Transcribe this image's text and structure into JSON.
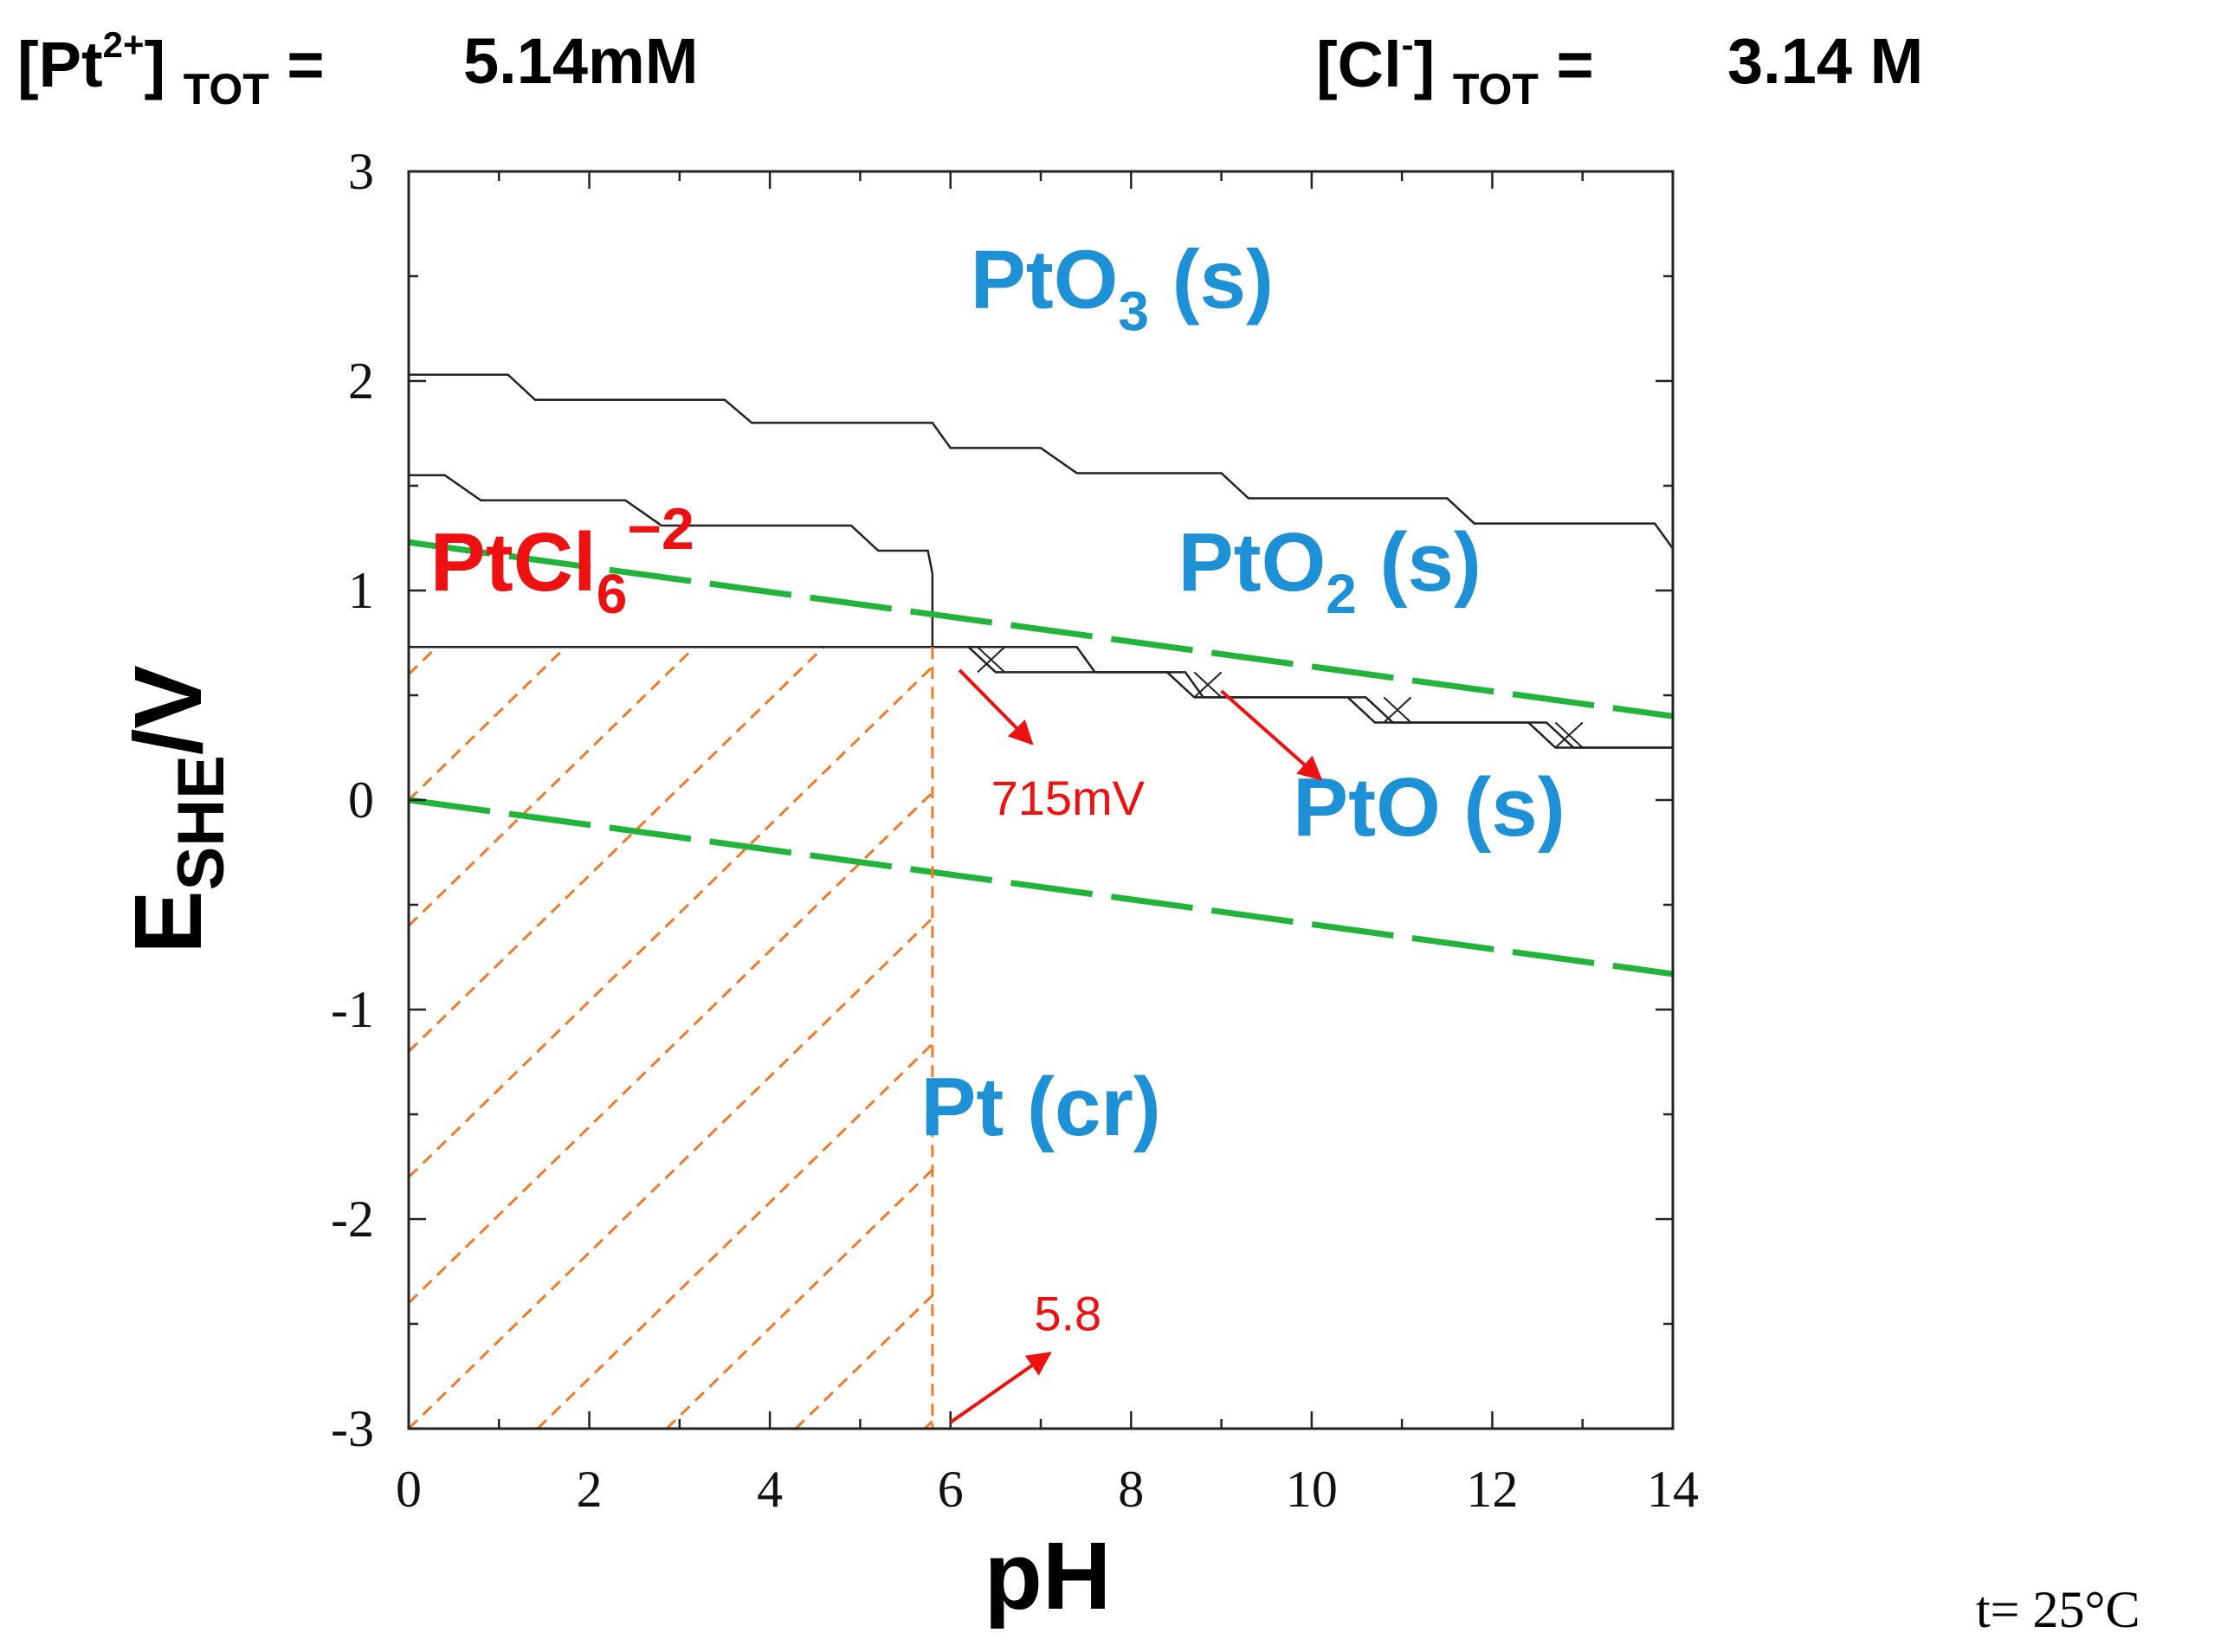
{
  "header": {
    "pt_label_prefix": "[Pt",
    "pt_charge": "2+",
    "pt_label_suffix": "]",
    "pt_sub": "TOT",
    "pt_eq": "=",
    "pt_value": "5.14mM",
    "cl_label_prefix": "[Cl",
    "cl_charge": "-",
    "cl_label_suffix": "]",
    "cl_sub": "TOT",
    "cl_eq": "=",
    "cl_value": "3.14 M"
  },
  "temperature": "t= 25°C",
  "colors": {
    "species_blue": "#1e90d6",
    "species_red": "#ee1111",
    "water_line": "#22b33a",
    "hatch": "#f07a2a",
    "boundary": "#222222"
  },
  "chart_data": {
    "type": "line",
    "title": "",
    "xlabel": "pH",
    "ylabel_main": "E",
    "ylabel_sub": "SHE",
    "ylabel_unit": "/V",
    "xlim": [
      0,
      14
    ],
    "ylim": [
      -3,
      3
    ],
    "x_ticks": [
      0,
      2,
      4,
      6,
      8,
      10,
      12,
      14
    ],
    "y_ticks": [
      3,
      2,
      1,
      0,
      -1,
      -2,
      -3
    ],
    "x_tick_labels": [
      "0",
      "2",
      "4",
      "6",
      "8",
      "10",
      "12",
      "14"
    ],
    "y_tick_labels": [
      "3",
      "2",
      "1",
      "0",
      "-1",
      "-2",
      "-3"
    ],
    "series": [
      {
        "name": "PtO3/PtO2 boundary",
        "x": [
          0,
          1.1,
          1.4,
          3.5,
          3.8,
          5.8,
          6.0,
          7.0,
          7.4,
          9.0,
          9.3,
          11.5,
          11.8,
          13.8,
          14
        ],
        "y": [
          2.03,
          2.03,
          1.91,
          1.91,
          1.8,
          1.8,
          1.68,
          1.68,
          1.56,
          1.56,
          1.44,
          1.44,
          1.32,
          1.32,
          1.2
        ]
      },
      {
        "name": "PtCl6 upper boundary",
        "x": [
          0,
          0.4,
          0.8,
          2.4,
          2.8,
          4.9,
          5.2,
          5.75,
          5.8
        ],
        "y": [
          1.55,
          1.55,
          1.43,
          1.43,
          1.31,
          1.31,
          1.19,
          1.19,
          1.08
        ]
      },
      {
        "name": "PtCl6 / Pt boundary",
        "x": [
          0,
          5.8
        ],
        "y": [
          0.73,
          0.73
        ]
      },
      {
        "name": "PtO2 / PtO boundary",
        "x": [
          5.8,
          7.4,
          7.6,
          8.6,
          8.8,
          10.6,
          10.9,
          12.6,
          12.9,
          14
        ],
        "y": [
          0.73,
          0.73,
          0.61,
          0.61,
          0.49,
          0.49,
          0.37,
          0.37,
          0.25,
          0.25
        ]
      },
      {
        "name": "PtO / Pt boundary",
        "x": [
          5.8,
          6.2,
          6.5,
          8.4,
          8.7,
          10.4,
          10.7,
          12.4,
          12.7,
          14
        ],
        "y": [
          0.73,
          0.73,
          0.61,
          0.61,
          0.49,
          0.49,
          0.37,
          0.37,
          0.25,
          0.25
        ]
      },
      {
        "name": "PtCl6 / PtO2 vertical",
        "x": [
          5.8,
          5.8
        ],
        "y": [
          1.08,
          0.73
        ]
      },
      {
        "name": "O2/H2O line",
        "x": [
          0,
          14
        ],
        "y": [
          1.23,
          0.4
        ]
      },
      {
        "name": "H2O/H2 line",
        "x": [
          0,
          14
        ],
        "y": [
          0.0,
          -0.83
        ]
      },
      {
        "name": "pH 5.8 vertical",
        "x": [
          5.8,
          5.8
        ],
        "y": [
          0.73,
          -3
        ]
      }
    ],
    "hatch_region": {
      "x_max": 5.8,
      "y_max": 0.73,
      "slope_v_per_ph": 0.42
    },
    "species_labels": [
      {
        "text": "PtO",
        "sub": "3",
        "tail": " (s)",
        "pH": 7.9,
        "E": 2.35,
        "color": "blue"
      },
      {
        "text": "PtO",
        "sub": "2",
        "tail": " (s)",
        "pH": 10.2,
        "E": 1.0,
        "color": "blue"
      },
      {
        "text": "PtO",
        "sub": "",
        "tail": " (s)",
        "pH": 11.3,
        "E": -0.17,
        "color": "blue"
      },
      {
        "text": "Pt",
        "sub": "",
        "tail": " (cr)",
        "pH": 7.0,
        "E": -1.6,
        "color": "blue"
      },
      {
        "text": "PtCl",
        "sub": "6",
        "sup": "−2",
        "tail": "",
        "pH": 1.7,
        "E": 1.0,
        "color": "red"
      }
    ],
    "annotations": [
      {
        "text": "715mV",
        "pH": 7.3,
        "E": -0.07,
        "arrow_from": [
          6.1,
          0.62
        ],
        "arrow_to": [
          6.9,
          0.27
        ]
      },
      {
        "text": "",
        "pH": 0,
        "E": 0,
        "arrow_from": [
          9.0,
          0.52
        ],
        "arrow_to": [
          10.1,
          0.1
        ]
      },
      {
        "text": "5.8",
        "pH": 7.3,
        "E": -2.53,
        "arrow_from": [
          6.0,
          -2.97
        ],
        "arrow_to": [
          7.1,
          -2.64
        ]
      }
    ]
  }
}
